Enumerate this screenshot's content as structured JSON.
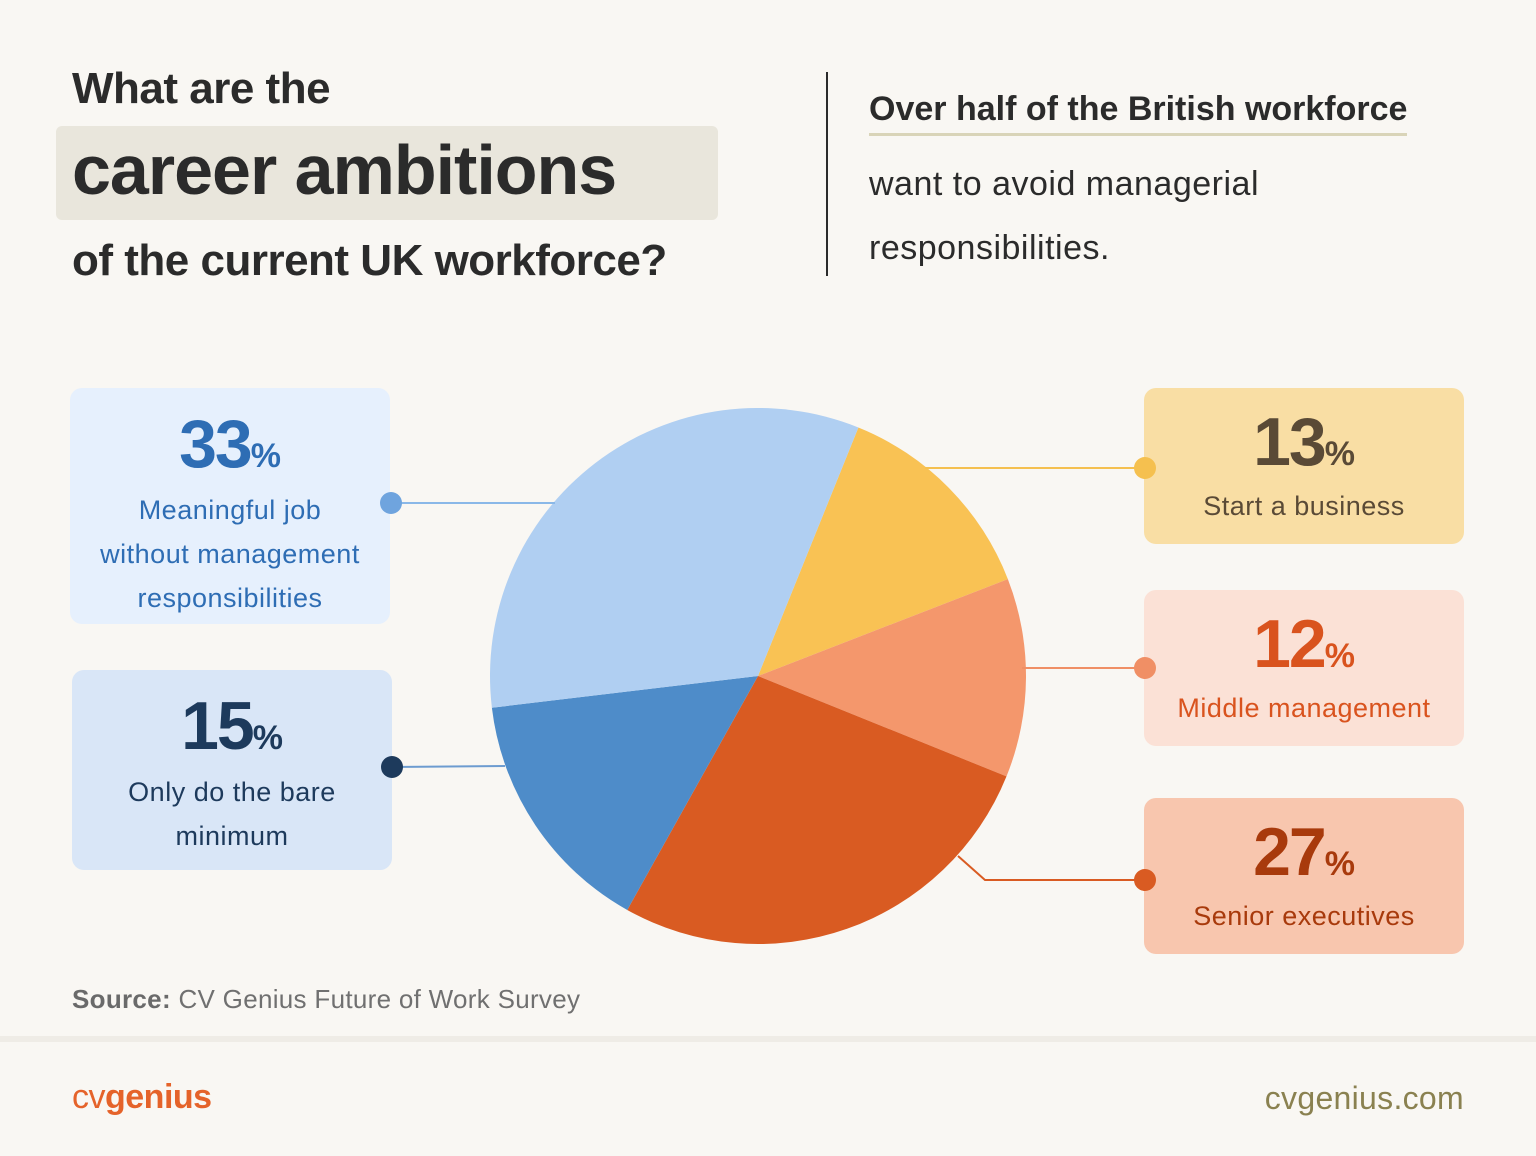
{
  "title": {
    "line1": "What are the",
    "line2": "career ambitions",
    "line3": "of the current UK workforce?"
  },
  "headline": {
    "bold": "Over half of the British workforce",
    "rest": "want to avoid managerial responsibilities."
  },
  "chart_data": {
    "type": "pie",
    "slices": [
      {
        "label": "Start a business",
        "value": 13,
        "color": "#f9c254"
      },
      {
        "label": "Middle management",
        "value": 12,
        "color": "#f4976c"
      },
      {
        "label": "Senior executives",
        "value": 27,
        "color": "#d95b22"
      },
      {
        "label": "Only do the bare minimum",
        "value": 15,
        "color": "#4e8cc9"
      },
      {
        "label": "Meaningful job without management responsibilities",
        "value": 33,
        "color": "#b0cff2"
      }
    ],
    "unit": "%"
  },
  "cards": {
    "meaningful": {
      "value": "33",
      "unit": "%",
      "label_lines": [
        "Meaningful job",
        "without management",
        "responsibilities"
      ]
    },
    "bare_minimum": {
      "value": "15",
      "unit": "%",
      "label_lines": [
        "Only do the bare",
        "minimum"
      ]
    },
    "start_business": {
      "value": "13",
      "unit": "%",
      "label_lines": [
        "Start a business"
      ]
    },
    "middle_management": {
      "value": "12",
      "unit": "%",
      "label_lines": [
        "Middle management"
      ]
    },
    "senior_executives": {
      "value": "27",
      "unit": "%",
      "label_lines": [
        "Senior executives"
      ]
    }
  },
  "source": {
    "label": "Source:",
    "text": "CV Genius Future of Work Survey"
  },
  "footer": {
    "brand_cv": "cv",
    "brand_genius": "genius",
    "site": "cvgenius.com"
  },
  "colors": {
    "brand": "#e5632a",
    "site": "#8a8150",
    "blue_light_text": "#2e6db4",
    "blue_dark_text": "#1d3a5c",
    "yellow_text": "#5a4a36",
    "orange_text": "#d9531e",
    "red_text": "#a83a0c"
  }
}
